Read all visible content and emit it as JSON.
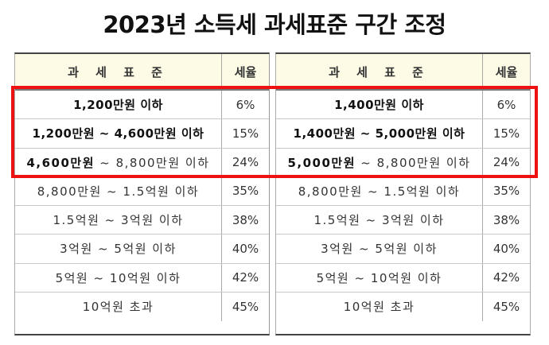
{
  "title": "2023년 소득세 과세표준 구간 조정",
  "headers": {
    "bracket": "과 세 표 준",
    "rate": "세율"
  },
  "left_table": {
    "rows": [
      {
        "bracket": "1,200만원 이하",
        "rate": "6%"
      },
      {
        "bracket": "1,200만원 ~ 4,600만원 이하",
        "rate": "15%"
      },
      {
        "bracket_bold": "4,600만원",
        "bracket_rest": " ~ 8,800만원 이하",
        "rate": "24%"
      },
      {
        "bracket": "8,800만원 ~ 1.5억원 이하",
        "rate": "35%"
      },
      {
        "bracket": "1.5억원 ~ 3억원 이하",
        "rate": "38%"
      },
      {
        "bracket": "3억원 ~ 5억원 이하",
        "rate": "40%"
      },
      {
        "bracket": "5억원 ~ 10억원 이하",
        "rate": "42%"
      },
      {
        "bracket": "10억원 초과",
        "rate": "45%"
      }
    ]
  },
  "right_table": {
    "rows": [
      {
        "bracket": "1,400만원 이하",
        "rate": "6%"
      },
      {
        "bracket": "1,400만원 ~ 5,000만원 이하",
        "rate": "15%"
      },
      {
        "bracket_bold": "5,000만원",
        "bracket_rest": " ~ 8,800만원 이하",
        "rate": "24%"
      },
      {
        "bracket": "8,800만원 ~ 1.5억원 이하",
        "rate": "35%"
      },
      {
        "bracket": "1.5억원 ~ 3억원 이하",
        "rate": "38%"
      },
      {
        "bracket": "3억원 ~ 5억원 이하",
        "rate": "40%"
      },
      {
        "bracket": "5억원 ~ 10억원 이하",
        "rate": "42%"
      },
      {
        "bracket": "10억원 초과",
        "rate": "45%"
      }
    ]
  },
  "highlight_color": "#ee1111"
}
